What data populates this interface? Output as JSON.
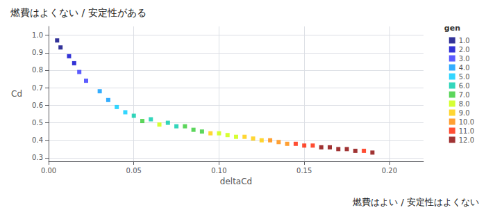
{
  "chart_data": {
    "type": "scatter",
    "title": "燃費はよくない / 安定性がある",
    "annotations": [
      {
        "text": "燃費はよい / 安定性はよくない"
      }
    ],
    "x_label": "deltaCd",
    "y_label": "Cd",
    "legend_title": "gen",
    "legend": "upper right",
    "grid": true,
    "marker": "square",
    "xlim": [
      0.0,
      0.22
    ],
    "xticks": [
      {
        "value": 0,
        "label": "0.00"
      },
      0.05,
      {
        "value": 0.1,
        "label": "0.10"
      },
      0.15,
      {
        "value": 0.2,
        "label": "0.20"
      }
    ],
    "ylim": [
      0.28,
      1.05
    ],
    "yticks": [
      0.3,
      0.4,
      0.5,
      0.6,
      0.7,
      0.8,
      0.9,
      {
        "value": 1,
        "label": "1.0"
      }
    ],
    "series": [
      {
        "name": "1.0",
        "color": "#000080",
        "x": [
          0.005,
          0.007
        ],
        "values": [
          0.97,
          0.93
        ]
      },
      {
        "name": "2.0",
        "color": "#0000cc",
        "x": [
          0.012,
          0.015
        ],
        "values": [
          0.88,
          0.84
        ]
      },
      {
        "name": "3.0",
        "color": "#3333ff",
        "x": [
          0.018,
          0.022
        ],
        "values": [
          0.79,
          0.74
        ]
      },
      {
        "name": "4.0",
        "color": "#0099ff",
        "x": [
          0.03,
          0.035
        ],
        "values": [
          0.68,
          0.63
        ]
      },
      {
        "name": "5.0",
        "color": "#00ccff",
        "x": [
          0.04,
          0.045
        ],
        "values": [
          0.59,
          0.56
        ]
      },
      {
        "name": "6.0",
        "color": "#00ccaa",
        "x": [
          0.06,
          0.07,
          0.075,
          0.05
        ],
        "values": [
          0.52,
          0.5,
          0.48,
          0.54
        ]
      },
      {
        "name": "7.0",
        "color": "#33cc33",
        "x": [
          0.08,
          0.085,
          0.09,
          0.055
        ],
        "values": [
          0.48,
          0.46,
          0.45,
          0.51
        ]
      },
      {
        "name": "8.0",
        "color": "#ccff00",
        "x": [
          0.1,
          0.105,
          0.11,
          0.065
        ],
        "values": [
          0.44,
          0.43,
          0.42,
          0.49
        ]
      },
      {
        "name": "9.0",
        "color": "#ffcc00",
        "x": [
          0.115,
          0.12,
          0.125,
          0.095
        ],
        "values": [
          0.42,
          0.41,
          0.4,
          0.44
        ]
      },
      {
        "name": "10.0",
        "color": "#ff8800",
        "x": [
          0.13,
          0.135,
          0.14
        ],
        "values": [
          0.4,
          0.39,
          0.38
        ]
      },
      {
        "name": "11.0",
        "color": "#ff2200",
        "x": [
          0.145,
          0.15,
          0.155,
          0.185
        ],
        "values": [
          0.38,
          0.37,
          0.37,
          0.34
        ]
      },
      {
        "name": "12.0",
        "color": "#880000",
        "x": [
          0.16,
          0.165,
          0.17,
          0.175,
          0.18,
          0.19
        ],
        "values": [
          0.36,
          0.36,
          0.35,
          0.35,
          0.34,
          0.33
        ]
      }
    ]
  }
}
